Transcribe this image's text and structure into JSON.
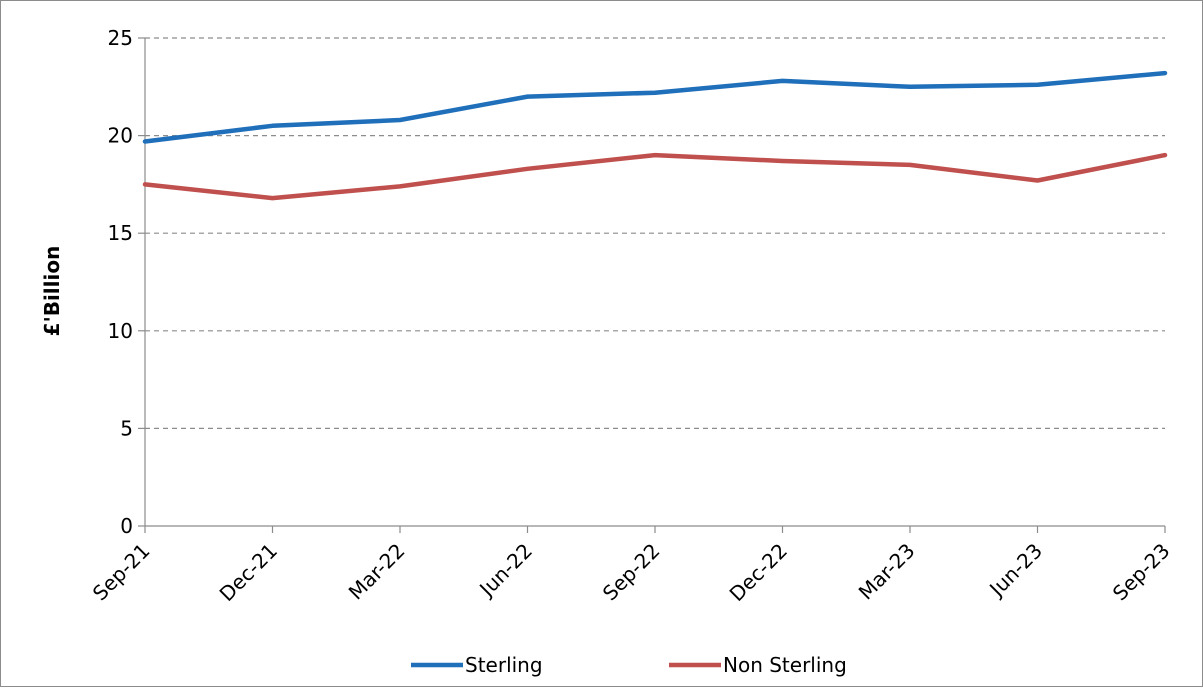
{
  "chart_data": {
    "type": "line",
    "categories": [
      "Sep-21",
      "Dec-21",
      "Mar-22",
      "Jun-22",
      "Sep-22",
      "Dec-22",
      "Mar-23",
      "Jun-23",
      "Sep-23"
    ],
    "series": [
      {
        "name": "Sterling",
        "color": "#1f6fba",
        "values": [
          19.7,
          20.5,
          20.8,
          22.0,
          22.2,
          22.8,
          22.5,
          22.6,
          23.2
        ]
      },
      {
        "name": "Non Sterling",
        "color": "#c0504d",
        "values": [
          17.5,
          16.8,
          17.4,
          18.3,
          19.0,
          18.7,
          18.5,
          17.7,
          19.0
        ]
      }
    ],
    "title": "",
    "xlabel": "",
    "ylabel": "£'Billion",
    "ylim": [
      0,
      25
    ],
    "yticks": [
      0,
      5,
      10,
      15,
      20,
      25
    ],
    "grid": "horizontal dashed",
    "legend": "bottom"
  }
}
